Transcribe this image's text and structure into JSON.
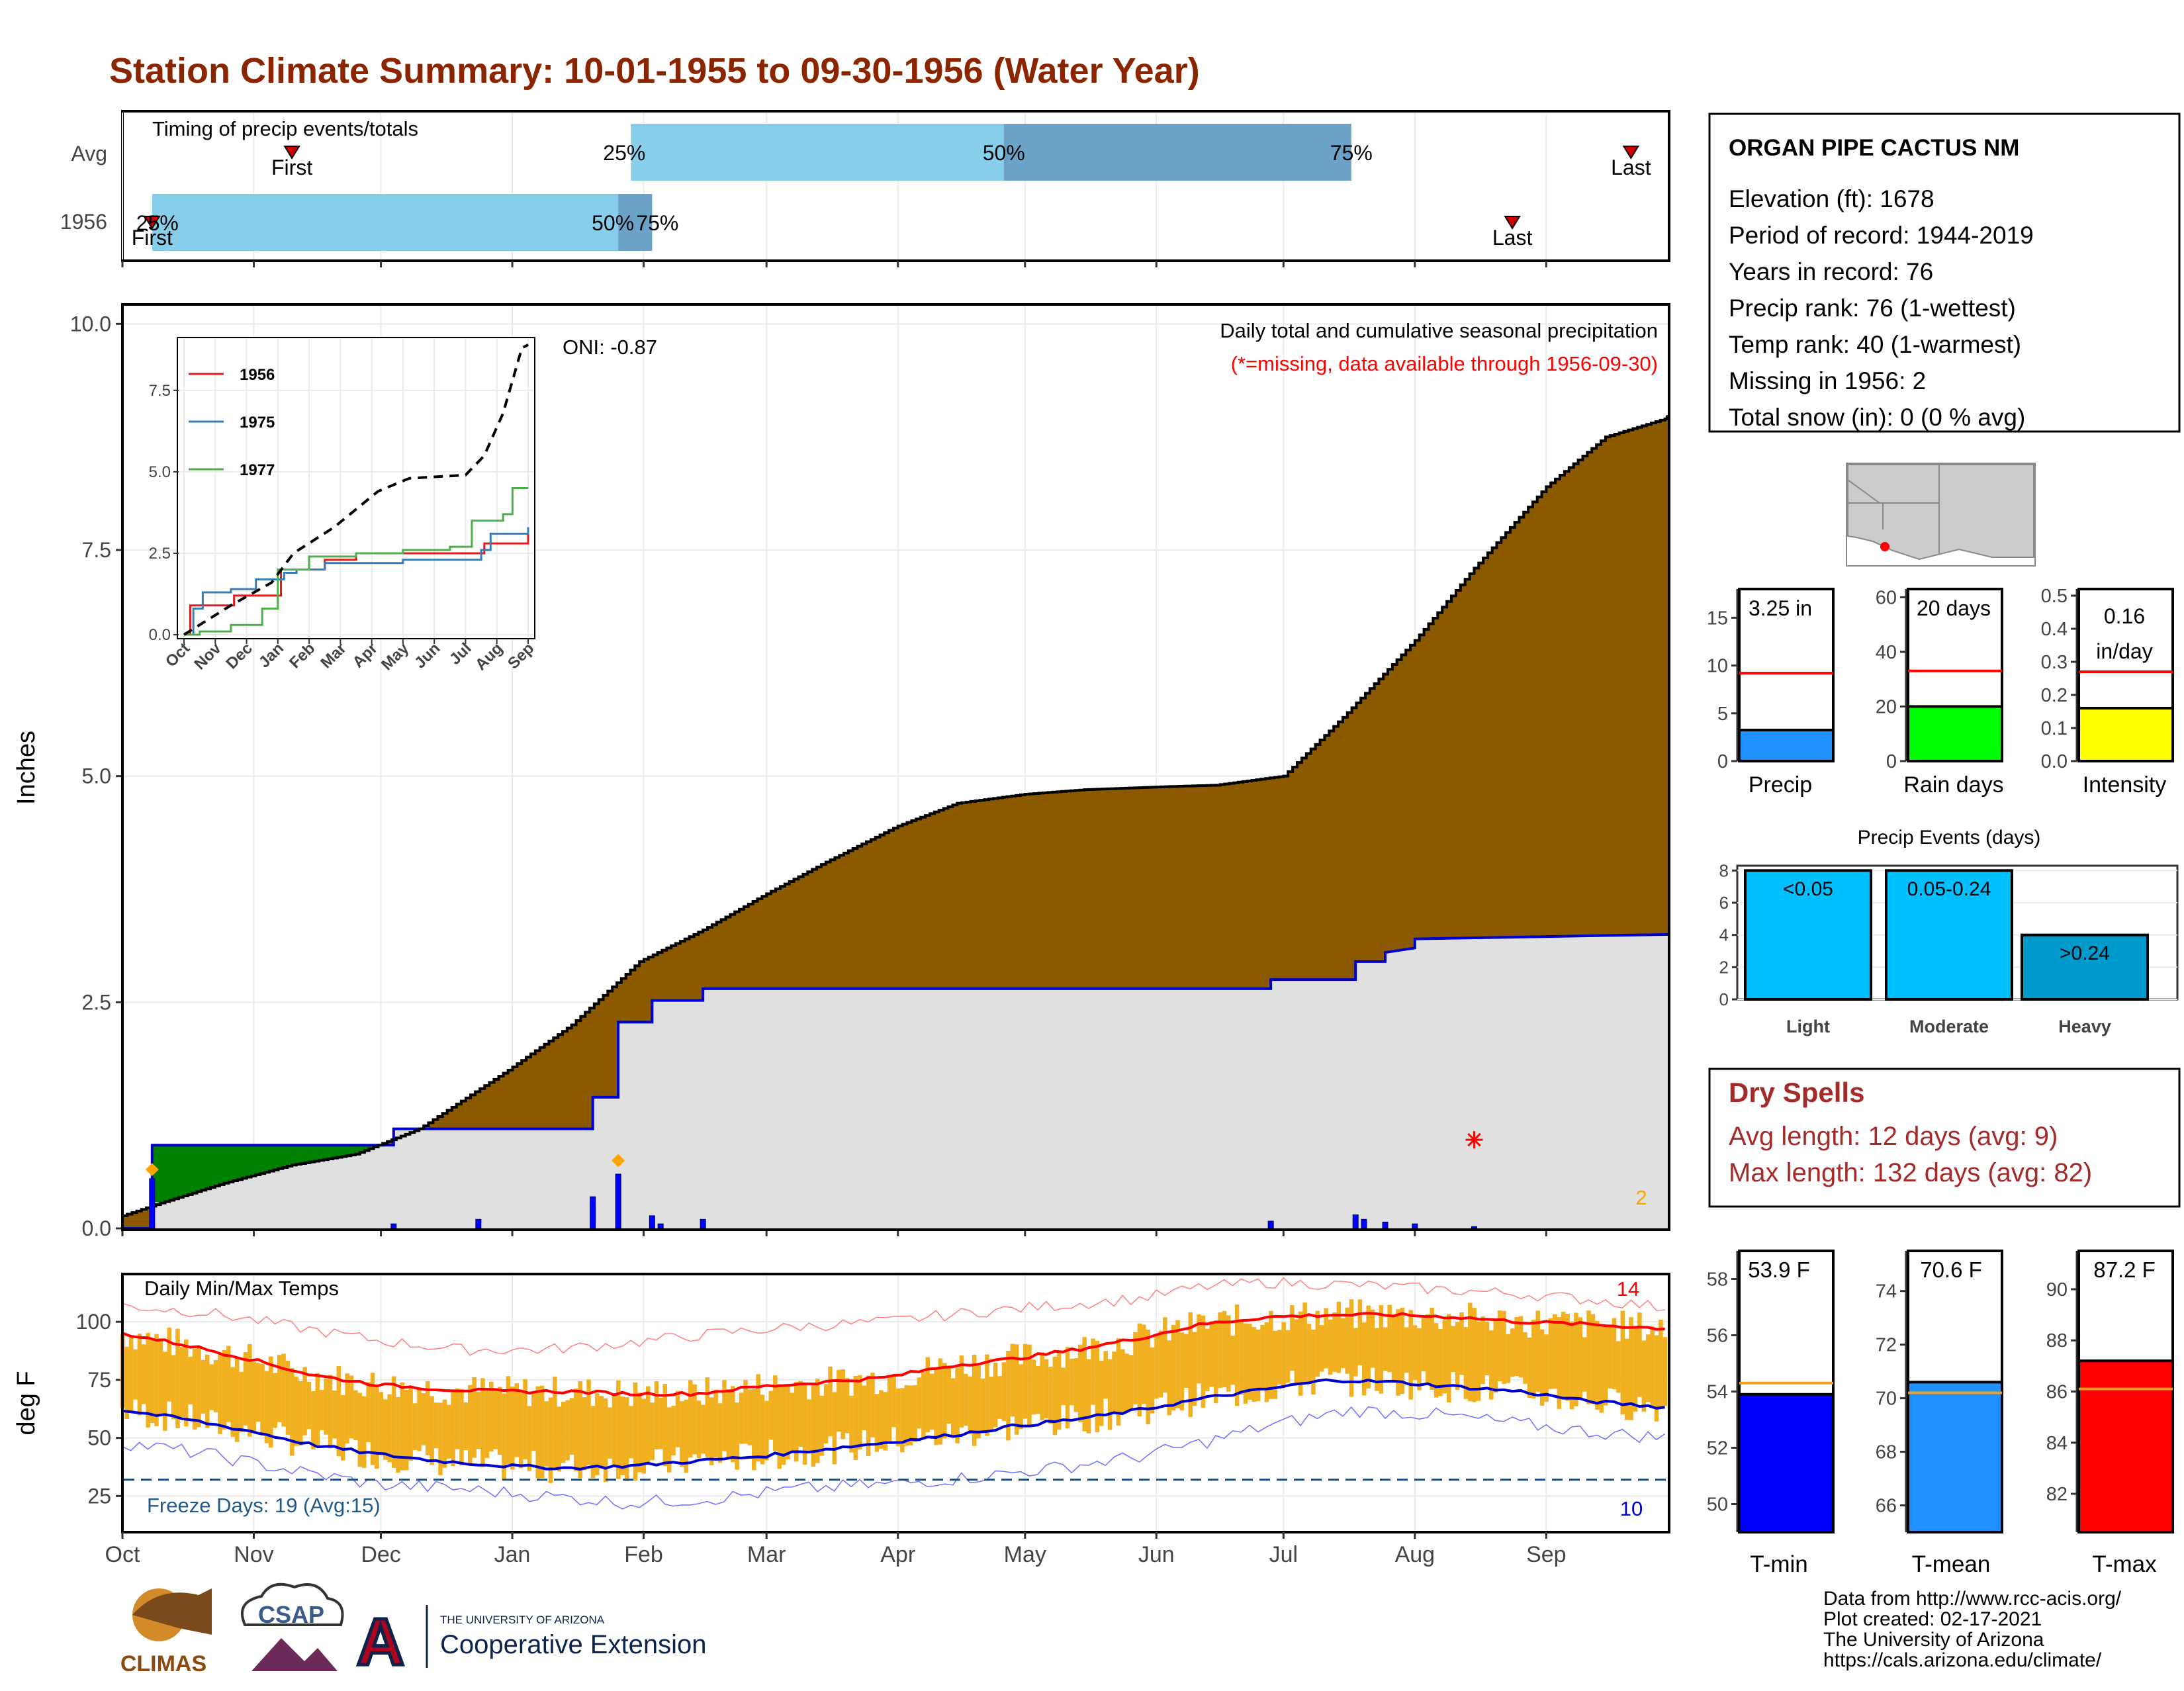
{
  "title": "Station Climate Summary: 10-01-1955 to 09-30-1956 (Water Year)",
  "colors": {
    "title": "#8b2500",
    "precip_fill": "#8b5a00",
    "normal_fill": "#e0e0e0",
    "blue_line": "#0000cc",
    "green_fill": "#008000",
    "temp_band": "#f0b020",
    "sky": "#87ceeb",
    "steel": "#6aa2c8",
    "dry_text": "#a52a2a"
  },
  "timing": {
    "label": "Timing of precip events/totals",
    "row_labels": [
      "Avg",
      "1956"
    ],
    "avg": {
      "first_date": "1955-11-10",
      "p25": "1956-01-29",
      "p50": "1956-04-26",
      "p75": "1956-07-17",
      "last_date": "1956-09-21",
      "label_first": "First",
      "label_p25": "25%",
      "label_p50": "50%",
      "label_p75": "75%",
      "label_last": "Last"
    },
    "y1956": {
      "first_date": "1955-10-08",
      "p25": "1955-10-08",
      "p50": "1956-01-26",
      "p75": "1956-02-03",
      "last_date": "1956-08-24",
      "label_first": "First",
      "label_p25": "25%",
      "label_p50": "50%",
      "label_p75": "75%",
      "label_last": "Last"
    }
  },
  "month_ticks": [
    "Oct",
    "Nov",
    "Dec",
    "Jan",
    "Feb",
    "Mar",
    "Apr",
    "May",
    "Jun",
    "Jul",
    "Aug",
    "Sep"
  ],
  "chart_data": [
    {
      "type": "area",
      "name": "precip",
      "ylabel": "Inches",
      "ylim": [
        0,
        10.2
      ],
      "y_ticks": [
        "0.0",
        "2.5",
        "5.0",
        "7.5",
        "10.0"
      ],
      "annotation_title": "Daily total and cumulative seasonal precipitation",
      "annotation_missing": "(*=missing, data available through 1956-09-30)",
      "oni": "ONI: -0.87",
      "missing_count": "2",
      "normal_cumulative": [
        [
          "1955-10-01",
          0.14
        ],
        [
          "1955-10-10",
          0.28
        ],
        [
          "1955-10-25",
          0.5
        ],
        [
          "1955-11-10",
          0.7
        ],
        [
          "1955-11-25",
          0.82
        ],
        [
          "1955-12-10",
          1.1
        ],
        [
          "1955-12-31",
          1.75
        ],
        [
          "1956-01-15",
          2.25
        ],
        [
          "1956-01-31",
          2.95
        ],
        [
          "1956-02-15",
          3.3
        ],
        [
          "1956-03-01",
          3.7
        ],
        [
          "1956-03-15",
          4.05
        ],
        [
          "1956-04-01",
          4.45
        ],
        [
          "1956-04-15",
          4.7
        ],
        [
          "1956-05-01",
          4.8
        ],
        [
          "1956-05-15",
          4.85
        ],
        [
          "1956-06-01",
          4.88
        ],
        [
          "1956-06-15",
          4.9
        ],
        [
          "1956-07-01",
          5.0
        ],
        [
          "1956-07-15",
          5.65
        ],
        [
          "1956-08-01",
          6.5
        ],
        [
          "1956-08-15",
          7.3
        ],
        [
          "1956-09-01",
          8.2
        ],
        [
          "1956-09-15",
          8.75
        ],
        [
          "1956-09-29",
          8.95
        ],
        [
          "1956-09-30",
          9.0
        ]
      ],
      "cumulative_1956": [
        [
          "1955-10-01",
          0.0
        ],
        [
          "1955-10-08",
          0.0
        ],
        [
          "1955-10-08",
          0.92
        ],
        [
          "1955-12-04",
          0.92
        ],
        [
          "1955-12-04",
          1.1
        ],
        [
          "1956-01-20",
          1.1
        ],
        [
          "1956-01-20",
          1.45
        ],
        [
          "1956-01-26",
          1.45
        ],
        [
          "1956-01-26",
          2.28
        ],
        [
          "1956-02-03",
          2.28
        ],
        [
          "1956-02-03",
          2.52
        ],
        [
          "1956-02-15",
          2.52
        ],
        [
          "1956-02-15",
          2.65
        ],
        [
          "1956-06-28",
          2.65
        ],
        [
          "1956-06-28",
          2.75
        ],
        [
          "1956-07-18",
          2.75
        ],
        [
          "1956-07-18",
          2.95
        ],
        [
          "1956-07-25",
          2.95
        ],
        [
          "1956-07-25",
          3.05
        ],
        [
          "1956-08-01",
          3.1
        ],
        [
          "1956-08-01",
          3.2
        ],
        [
          "1956-09-30",
          3.25
        ]
      ],
      "daily_bars": [
        [
          "1955-10-08",
          0.55
        ],
        [
          "1955-12-04",
          0.05
        ],
        [
          "1955-12-24",
          0.1
        ],
        [
          "1956-01-20",
          0.35
        ],
        [
          "1956-01-26",
          0.6
        ],
        [
          "1956-02-03",
          0.14
        ],
        [
          "1956-02-05",
          0.05
        ],
        [
          "1956-02-15",
          0.1
        ],
        [
          "1956-06-28",
          0.08
        ],
        [
          "1956-07-18",
          0.15
        ],
        [
          "1956-07-20",
          0.1
        ],
        [
          "1956-07-25",
          0.07
        ],
        [
          "1956-08-01",
          0.05
        ],
        [
          "1956-08-15",
          0.02
        ]
      ],
      "markers": [
        [
          "1955-10-08",
          0.65
        ],
        [
          "1956-01-26",
          0.75
        ]
      ],
      "missing_marker": [
        "1956-08-15",
        0.98
      ]
    },
    {
      "type": "line",
      "name": "inset_cumulative",
      "ylim": [
        0,
        9
      ],
      "y_ticks": [
        "0.0",
        "2.5",
        "5.0",
        "7.5"
      ],
      "x_labels": [
        "Oct",
        "Nov",
        "Dec",
        "Jan",
        "Feb",
        "Mar",
        "Apr",
        "May",
        "Jun",
        "Jul",
        "Aug",
        "Sep"
      ],
      "series": [
        {
          "name": "1956",
          "color": "#e41a1c",
          "points": [
            [
              0,
              0
            ],
            [
              0.2,
              0.9
            ],
            [
              1.5,
              0.9
            ],
            [
              1.6,
              1.2
            ],
            [
              3.0,
              1.2
            ],
            [
              3.1,
              2.0
            ],
            [
              4.5,
              2.3
            ],
            [
              5.5,
              2.5
            ],
            [
              9.6,
              2.8
            ],
            [
              11.0,
              3.3
            ]
          ]
        },
        {
          "name": "1975",
          "color": "#377eb8",
          "points": [
            [
              0,
              0
            ],
            [
              0.3,
              0.8
            ],
            [
              0.6,
              1.3
            ],
            [
              1.5,
              1.4
            ],
            [
              2.3,
              1.7
            ],
            [
              3.2,
              1.9
            ],
            [
              3.6,
              2.0
            ],
            [
              4.5,
              2.2
            ],
            [
              7.0,
              2.3
            ],
            [
              9.5,
              2.6
            ],
            [
              9.8,
              3.1
            ],
            [
              11.0,
              3.3
            ]
          ]
        },
        {
          "name": "1977",
          "color": "#4daf4a",
          "points": [
            [
              0,
              0
            ],
            [
              0.5,
              0.1
            ],
            [
              1.5,
              0.3
            ],
            [
              2.5,
              0.8
            ],
            [
              3.0,
              2.0
            ],
            [
              4.0,
              2.4
            ],
            [
              5.5,
              2.5
            ],
            [
              7.0,
              2.6
            ],
            [
              8.5,
              2.7
            ],
            [
              9.2,
              3.5
            ],
            [
              10.2,
              3.7
            ],
            [
              10.5,
              4.5
            ],
            [
              11.0,
              4.5
            ]
          ]
        }
      ],
      "normal": [
        [
          0,
          0
        ],
        [
          0.5,
          0.3
        ],
        [
          1.5,
          0.9
        ],
        [
          2.8,
          1.6
        ],
        [
          3.5,
          2.5
        ],
        [
          4.8,
          3.3
        ],
        [
          6.2,
          4.4
        ],
        [
          7.2,
          4.8
        ],
        [
          9.0,
          4.9
        ],
        [
          9.6,
          5.5
        ],
        [
          10.2,
          6.8
        ],
        [
          10.8,
          8.8
        ],
        [
          11.0,
          8.9
        ]
      ]
    },
    {
      "type": "bar",
      "name": "precip_summary",
      "categories": [
        "Precip",
        "Rain days",
        "Intensity"
      ],
      "values": [
        3.25,
        20,
        0.16
      ],
      "averages": [
        9.2,
        33,
        0.27
      ],
      "ylims": [
        [
          0,
          18
        ],
        [
          0,
          63
        ],
        [
          0,
          0.52
        ]
      ],
      "y_ticks": [
        [
          "0",
          "5",
          "10",
          "15"
        ],
        [
          "0",
          "20",
          "40",
          "60"
        ],
        [
          "0.0",
          "0.1",
          "0.2",
          "0.3",
          "0.4",
          "0.5"
        ]
      ],
      "labels": [
        "3.25 in",
        "20 days",
        "0.16",
        "in/day"
      ],
      "colors": [
        "#1e90ff",
        "#00ff00",
        "#ffff00"
      ]
    },
    {
      "type": "bar",
      "name": "precip_events",
      "title": "Precip Events (days)",
      "categories": [
        "Light",
        "Moderate",
        "Heavy"
      ],
      "labels": [
        "<0.05",
        "0.05-0.24",
        ">0.24"
      ],
      "values": [
        8,
        8,
        4
      ],
      "ylim": [
        0,
        8.3
      ],
      "y_ticks": [
        "0",
        "2",
        "4",
        "6",
        "8"
      ],
      "colors": [
        "#00bfff",
        "#00bfff",
        "#009acd"
      ]
    },
    {
      "type": "line",
      "name": "temps",
      "title": "Daily Min/Max Temps",
      "ylabel": "deg F",
      "ylim": [
        10,
        120
      ],
      "y_ticks": [
        "25",
        "50",
        "75",
        "100"
      ],
      "freeze_label": "Freeze Days: 19 (Avg:15)",
      "hot_count": "14",
      "cold_count": "10",
      "freeze_line": 32,
      "normal_max": [
        [
          0,
          95
        ],
        [
          15,
          90
        ],
        [
          30,
          84
        ],
        [
          45,
          77
        ],
        [
          60,
          73
        ],
        [
          75,
          71
        ],
        [
          90,
          70
        ],
        [
          105,
          70
        ],
        [
          120,
          69
        ],
        [
          135,
          69
        ],
        [
          150,
          72
        ],
        [
          165,
          74
        ],
        [
          180,
          76
        ],
        [
          195,
          81
        ],
        [
          210,
          84
        ],
        [
          225,
          88
        ],
        [
          240,
          93
        ],
        [
          255,
          99
        ],
        [
          270,
          102
        ],
        [
          285,
          103
        ],
        [
          300,
          103
        ],
        [
          315,
          102
        ],
        [
          330,
          100
        ],
        [
          345,
          99
        ],
        [
          365,
          97
        ]
      ],
      "normal_min": [
        [
          0,
          62
        ],
        [
          15,
          58
        ],
        [
          30,
          53
        ],
        [
          45,
          47
        ],
        [
          60,
          43
        ],
        [
          75,
          40
        ],
        [
          90,
          38
        ],
        [
          105,
          37
        ],
        [
          120,
          38
        ],
        [
          135,
          40
        ],
        [
          150,
          42
        ],
        [
          165,
          45
        ],
        [
          180,
          48
        ],
        [
          195,
          51
        ],
        [
          210,
          55
        ],
        [
          225,
          58
        ],
        [
          240,
          62
        ],
        [
          255,
          67
        ],
        [
          270,
          71
        ],
        [
          285,
          75
        ],
        [
          300,
          74
        ],
        [
          315,
          72
        ],
        [
          330,
          70
        ],
        [
          345,
          66
        ],
        [
          365,
          63
        ]
      ],
      "record_max": [
        [
          0,
          107
        ],
        [
          20,
          104
        ],
        [
          40,
          98
        ],
        [
          60,
          92
        ],
        [
          80,
          88
        ],
        [
          100,
          88
        ],
        [
          120,
          91
        ],
        [
          140,
          95
        ],
        [
          160,
          98
        ],
        [
          180,
          100
        ],
        [
          200,
          104
        ],
        [
          220,
          107
        ],
        [
          240,
          110
        ],
        [
          255,
          115
        ],
        [
          270,
          117
        ],
        [
          290,
          116
        ],
        [
          310,
          114
        ],
        [
          330,
          112
        ],
        [
          350,
          109
        ],
        [
          365,
          106
        ]
      ],
      "record_min": [
        [
          0,
          48
        ],
        [
          20,
          43
        ],
        [
          40,
          36
        ],
        [
          60,
          30
        ],
        [
          80,
          28
        ],
        [
          100,
          25
        ],
        [
          120,
          22
        ],
        [
          140,
          24
        ],
        [
          160,
          28
        ],
        [
          180,
          30
        ],
        [
          200,
          33
        ],
        [
          220,
          37
        ],
        [
          240,
          42
        ],
        [
          255,
          48
        ],
        [
          270,
          55
        ],
        [
          290,
          62
        ],
        [
          310,
          60
        ],
        [
          330,
          56
        ],
        [
          350,
          52
        ],
        [
          365,
          50
        ]
      ]
    },
    {
      "type": "bar",
      "name": "temp_summary",
      "categories": [
        "T-min",
        "T-mean",
        "T-max"
      ],
      "labels": [
        "53.9 F",
        "70.6 F",
        "87.2 F"
      ],
      "values": [
        53.9,
        70.6,
        87.2
      ],
      "averages": [
        54.3,
        70.2,
        86.1
      ],
      "ylims": [
        [
          49,
          59
        ],
        [
          65,
          75.5
        ],
        [
          80.5,
          91.5
        ]
      ],
      "y_ticks": [
        [
          "50",
          "52",
          "54",
          "56",
          "58"
        ],
        [
          "66",
          "68",
          "70",
          "72",
          "74"
        ],
        [
          "82",
          "84",
          "86",
          "88",
          "90"
        ]
      ],
      "colors": [
        "#0000ff",
        "#1e90ff",
        "#ff0000"
      ]
    }
  ],
  "station": {
    "name": "ORGAN PIPE CACTUS NM",
    "lines": [
      "Elevation (ft): 1678",
      "Period of record: 1944-2019",
      "Years in record: 76",
      "Precip rank: 76 (1-wettest)",
      "Temp rank: 40 (1-warmest)",
      "Missing in 1956: 2",
      "Total snow (in): 0 (0 % avg)"
    ]
  },
  "dry_spells": {
    "title": "Dry Spells",
    "avg": "Avg length: 12 days (avg: 9)",
    "max": "Max length: 132 days (avg: 82)"
  },
  "footer": {
    "credits": [
      "Data from http://www.rcc-acis.org/",
      "Plot created: 02-17-2021",
      "The University of Arizona",
      "https://cals.arizona.edu/climate/"
    ],
    "logo_climas": "CLIMAS",
    "logo_csap": "CSAP",
    "logo_ua_small": "THE UNIVERSITY OF ARIZONA",
    "logo_ua_big": "Cooperative Extension"
  }
}
